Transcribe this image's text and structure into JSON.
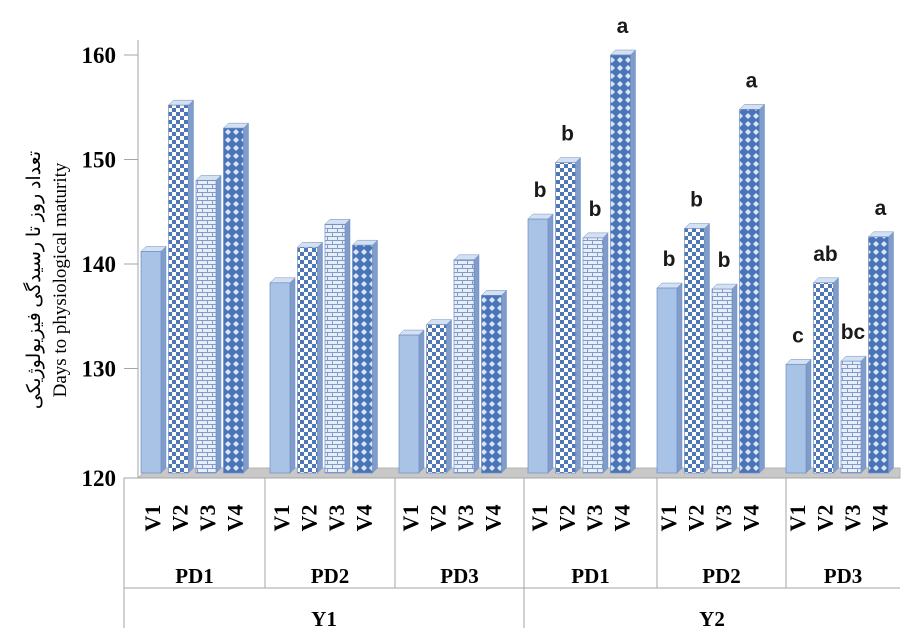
{
  "chart_data": {
    "type": "bar",
    "ylabel": "Days to physiological maturity",
    "ylabel_fa": "تعداد روز تا رسیدگی فیزیولوژیکی",
    "ylim": [
      120,
      160
    ],
    "yticks": [
      120,
      130,
      140,
      150,
      160
    ],
    "years": [
      "Y1",
      "Y2"
    ],
    "planting_dates": [
      "PD1",
      "PD2",
      "PD3"
    ],
    "varieties": [
      "V1",
      "V2",
      "V3",
      "V4"
    ],
    "groups": [
      {
        "year": "Y1",
        "pd": "PD1",
        "values": [
          141.2,
          155.2,
          148.0,
          153.0
        ],
        "letters": [
          "",
          "",
          "",
          ""
        ]
      },
      {
        "year": "Y1",
        "pd": "PD2",
        "values": [
          138.2,
          141.6,
          143.8,
          141.8
        ],
        "letters": [
          "",
          "",
          "",
          ""
        ]
      },
      {
        "year": "Y1",
        "pd": "PD3",
        "values": [
          133.2,
          134.2,
          140.4,
          137.0
        ],
        "letters": [
          "",
          "",
          "",
          ""
        ]
      },
      {
        "year": "Y2",
        "pd": "PD1",
        "values": [
          144.3,
          149.7,
          142.5,
          160.0
        ],
        "letters": [
          "b",
          "b",
          "b",
          "a"
        ]
      },
      {
        "year": "Y2",
        "pd": "PD2",
        "values": [
          137.7,
          143.4,
          137.6,
          154.8
        ],
        "letters": [
          "b",
          "b",
          "b",
          "a"
        ]
      },
      {
        "year": "Y2",
        "pd": "PD3",
        "values": [
          130.4,
          138.2,
          130.7,
          142.6
        ],
        "letters": [
          "c",
          "ab",
          "bc",
          "a"
        ]
      }
    ],
    "grid": false,
    "legend": "none",
    "colors": {
      "bar_fill": "#a9c3e6",
      "bar_side": "#7f9ccb",
      "bar_top": "#d3e1f3",
      "pattern_dark": "#4f76b5",
      "pattern_light": "#ffffff",
      "floor": "#c8c8c8",
      "axis": "#a6a6a6"
    },
    "patterns": [
      "plain",
      "checker",
      "brick",
      "diamond"
    ]
  }
}
